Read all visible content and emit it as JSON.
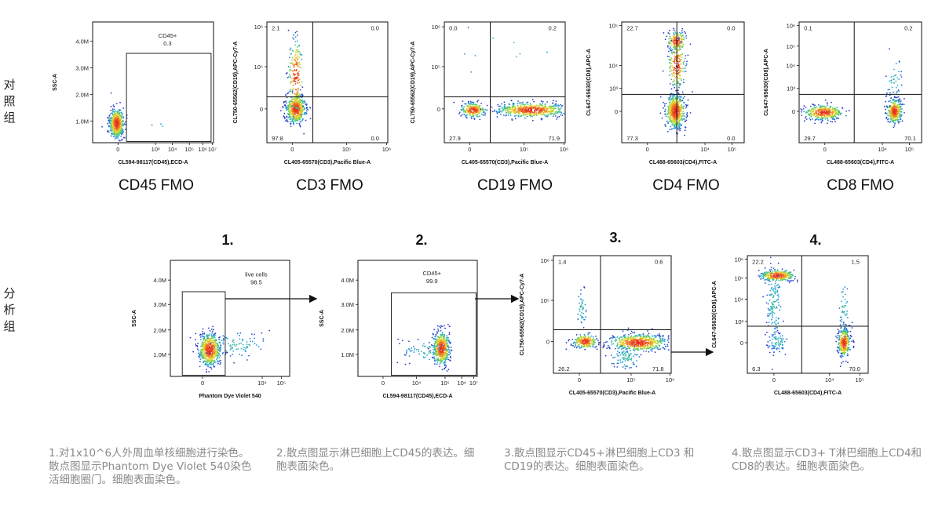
{
  "row_labels": {
    "control": "对照组",
    "analysis": "分析组"
  },
  "step_numbers": [
    "1.",
    "2.",
    "3.",
    "4."
  ],
  "captions": [
    "1.对1x10^6人外周血单核细胞进行染色。散点图显示Phantom Dye Violet 540染色活细胞圈门。细胞表面染色。",
    "2.散点图显示淋巴细胞上CD45的表达。细胞表面染色。",
    "3.散点图显示CD45+淋巴细胞上CD3 和CD19的表达。细胞表面染色。",
    "4.散点图显示CD3+ T淋巴细胞上CD4和CD8的表达。细胞表面染色。"
  ],
  "colors": {
    "gate_line": "#111111",
    "arrow": "#111111",
    "caption": "#8a8a8a"
  },
  "chart_data": [
    {
      "id": "cd45-fmo",
      "type": "scatter",
      "title": "CD45 FMO",
      "xlabel": "CL594-98117(CD45),ECD-A",
      "ylabel": "SSC-A",
      "x_ticks": [
        "0",
        "10³",
        "10⁴",
        "10⁵",
        "10⁶",
        "10⁷"
      ],
      "y_ticks": [
        "1.0M",
        "2.0M",
        "3.0M",
        "4.0M"
      ],
      "gates": [
        {
          "label": "CD45+",
          "value": "0.3"
        }
      ],
      "populations": [
        {
          "name": "main",
          "x": "~0",
          "y": "~0.9M",
          "spread": "tight"
        }
      ]
    },
    {
      "id": "cd3-fmo",
      "type": "scatter",
      "title": "CD3 FMO",
      "xlabel": "CL405-65570(CD3),Pacific Blue-A",
      "ylabel": "CL750-65562(CD19),APC-Cy7-A",
      "x_ticks": [
        "0",
        "10⁵",
        "10⁶"
      ],
      "y_ticks": [
        "0",
        "10⁵",
        "10⁶"
      ],
      "quadrants": {
        "top_left": "2.1",
        "top_right": "0.0",
        "bottom_left": "97.8",
        "bottom_right": "0.0"
      }
    },
    {
      "id": "cd19-fmo",
      "type": "scatter",
      "title": "CD19 FMO",
      "xlabel": "CL405-65570(CD3),Pacific Blue-A",
      "ylabel": "CL750-65562(CD19),APC-Cy7-A",
      "x_ticks": [
        "0",
        "10⁵",
        "10⁶"
      ],
      "y_ticks": [
        "0",
        "10⁵",
        "10⁶"
      ],
      "quadrants": {
        "top_left": "0.0",
        "top_right": "0.2",
        "bottom_left": "27.9",
        "bottom_right": "71.9"
      }
    },
    {
      "id": "cd4-fmo",
      "type": "scatter",
      "title": "CD4 FMO",
      "xlabel": "CL488-65603(CD4),FITC-A",
      "ylabel": "CL647-65630(CD8),APC-A",
      "x_ticks": [
        "0",
        "10⁴",
        "10⁵"
      ],
      "y_ticks": [
        "0",
        "10³",
        "10⁴",
        "10⁵"
      ],
      "quadrants": {
        "top_left": "22.7",
        "top_right": "0.0",
        "bottom_left": "77.3",
        "bottom_right": "0.0"
      }
    },
    {
      "id": "cd8-fmo",
      "type": "scatter",
      "title": "CD8 FMO",
      "xlabel": "CL488-65603(CD4),FITC-A",
      "ylabel": "CL647-65630(CD8),APC-A",
      "x_ticks": [
        "0",
        "10⁴",
        "10⁵"
      ],
      "y_ticks": [
        "0",
        "10³",
        "10⁴",
        "10⁵",
        "10⁶"
      ],
      "quadrants": {
        "top_left": "0.1",
        "top_right": "0.2",
        "bottom_left": "29.7",
        "bottom_right": "70.1"
      }
    },
    {
      "id": "step1",
      "type": "scatter",
      "title": "",
      "xlabel": "Phantom Dye Violet 540",
      "ylabel": "SSC-A",
      "x_ticks": [
        "0",
        "10⁴",
        "10⁵"
      ],
      "y_ticks": [
        "1.0M",
        "2.0M",
        "3.0M",
        "4.0M"
      ],
      "gates": [
        {
          "label": "live cells",
          "value": "98.5"
        }
      ]
    },
    {
      "id": "step2",
      "type": "scatter",
      "title": "",
      "xlabel": "CL594-98117(CD45),ECD-A",
      "ylabel": "SSC-A",
      "x_ticks": [
        "0",
        "10⁴",
        "10⁵",
        "10⁶",
        "10⁷"
      ],
      "y_ticks": [
        "1.0M",
        "2.0M",
        "3.0M",
        "4.0M"
      ],
      "gates": [
        {
          "label": "CD45+",
          "value": "99.9"
        }
      ]
    },
    {
      "id": "step3",
      "type": "scatter",
      "title": "",
      "xlabel": "CL405-65570(CD3),Pacific Blue-A",
      "ylabel": "CL750-65562(CD19),APC-Cy7-A",
      "x_ticks": [
        "0",
        "10⁵",
        "10⁶"
      ],
      "y_ticks": [
        "0",
        "10⁵",
        "10⁶"
      ],
      "quadrants": {
        "top_left": "1.4",
        "top_right": "0.6",
        "bottom_left": "26.2",
        "bottom_right": "71.8"
      }
    },
    {
      "id": "step4",
      "type": "scatter",
      "title": "",
      "xlabel": "CL488-65603(CD4),FITC-A",
      "ylabel": "CL647-65630(CD8),APC-A",
      "x_ticks": [
        "0",
        "10⁴",
        "10⁵"
      ],
      "y_ticks": [
        "0",
        "10³",
        "10⁴",
        "10⁵",
        "10⁶"
      ],
      "quadrants": {
        "top_left": "22.2",
        "top_right": "1.5",
        "bottom_left": "6.3",
        "bottom_right": "70.0"
      }
    }
  ]
}
